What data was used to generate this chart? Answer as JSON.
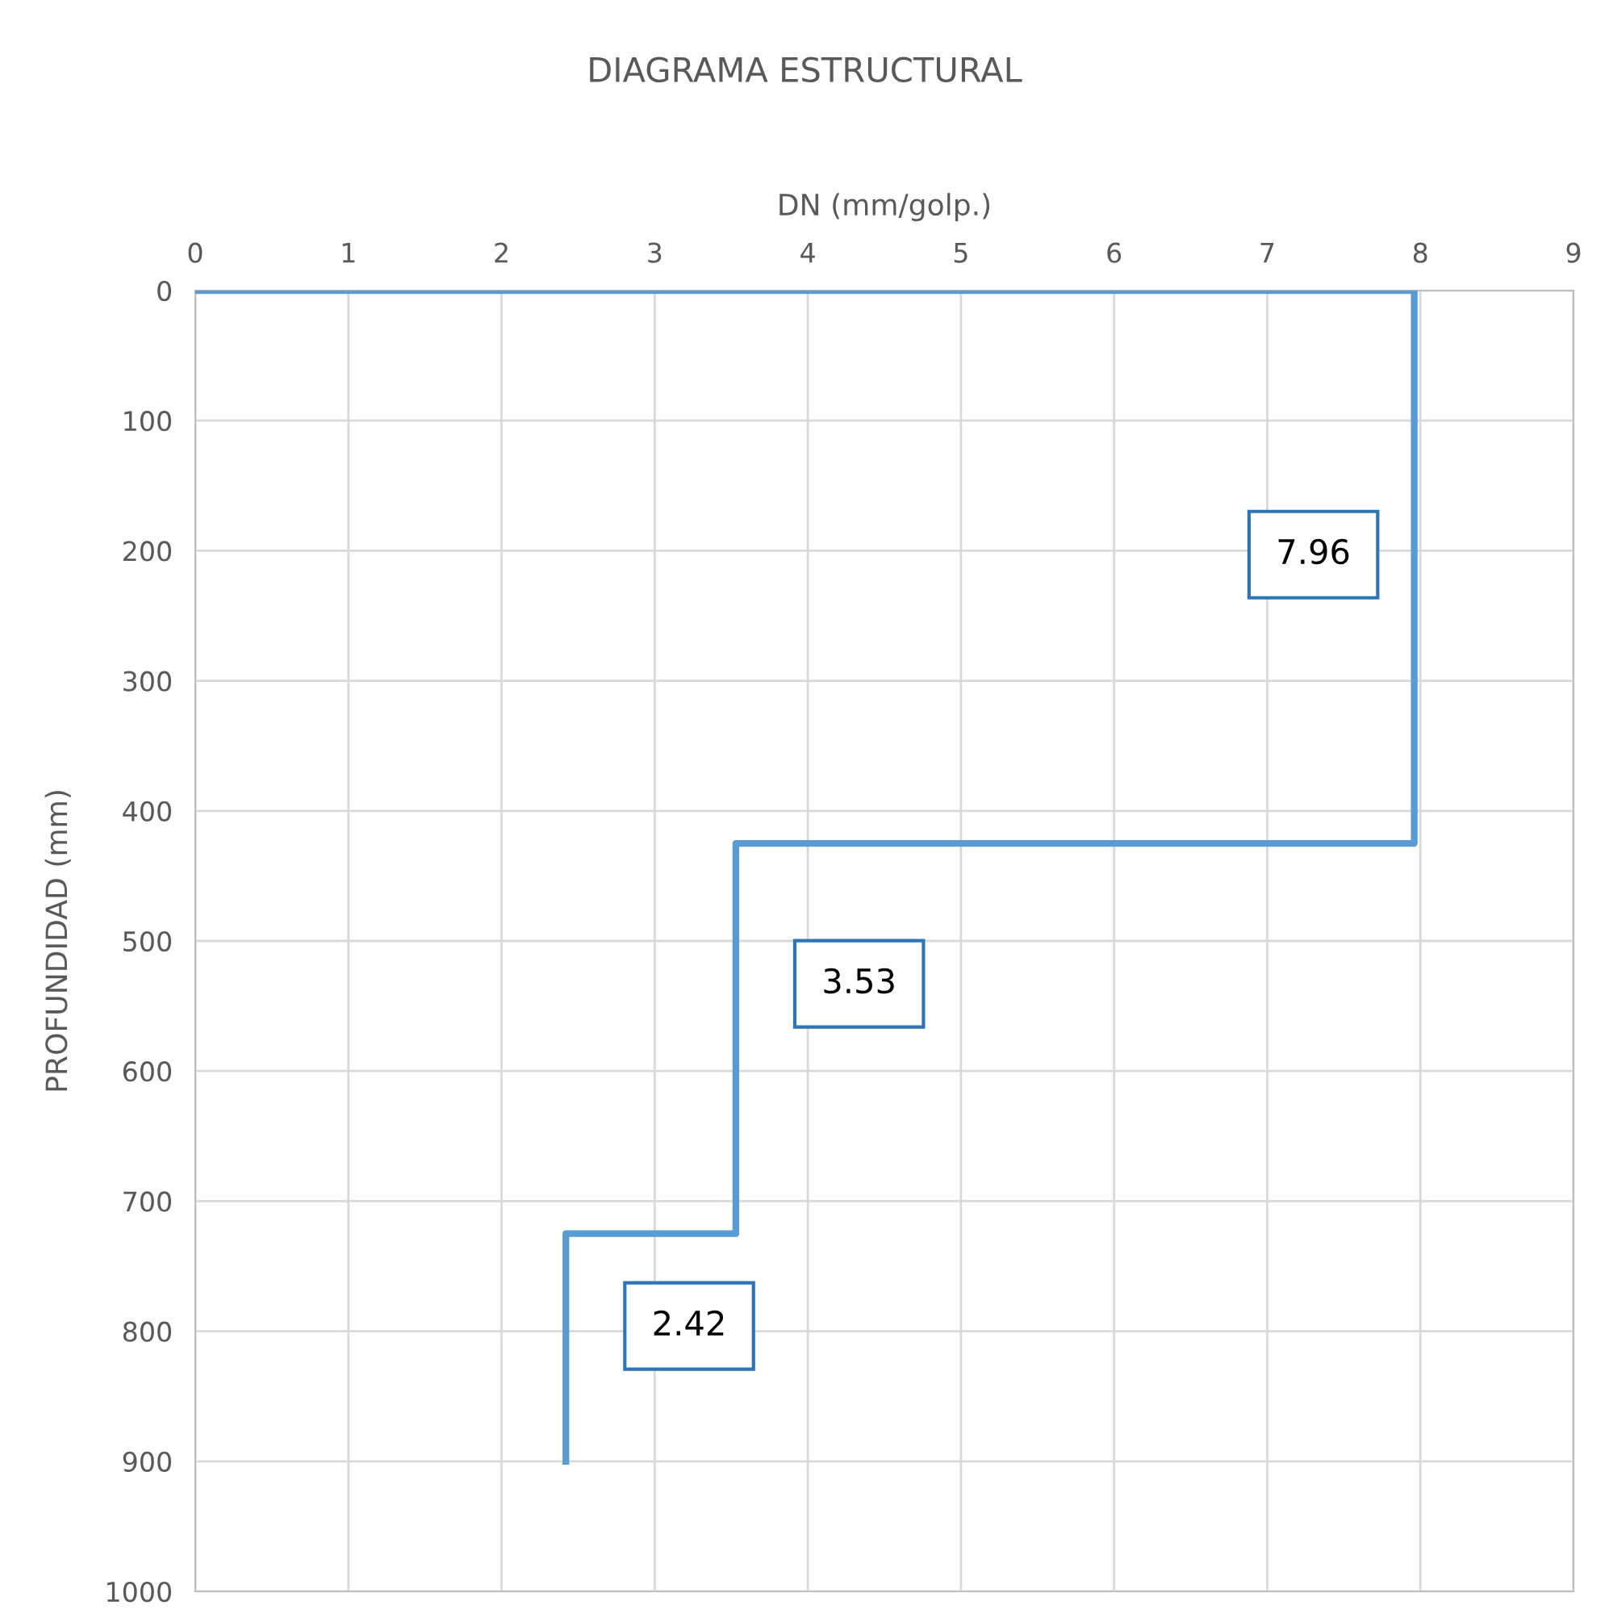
{
  "chart_data": {
    "type": "line",
    "title": "DIAGRAMA ESTRUCTURAL",
    "xlabel": "DN (mm/golp.)",
    "ylabel": "PROFUNDIDAD (mm)",
    "series": [
      {
        "color": "#5b9bd5",
        "x": [
          0,
          7.96,
          7.96,
          3.53,
          3.53,
          2.42,
          2.42
        ],
        "values": [
          0,
          0,
          425,
          425,
          725,
          725,
          900
        ]
      }
    ],
    "xlim": [
      0,
      9
    ],
    "xticks": [
      0,
      1,
      2,
      3,
      4,
      5,
      6,
      7,
      8,
      9
    ],
    "ylim": [
      1000,
      0
    ],
    "yticks": [
      0,
      100,
      200,
      300,
      400,
      500,
      600,
      700,
      800,
      900,
      1000
    ],
    "grid": true,
    "marker": "none",
    "line_style": "solid",
    "annotations": [
      {
        "text": "7.96",
        "x": 7.96,
        "y": 203
      },
      {
        "text": "3.53",
        "x": 3.53,
        "y": 533
      },
      {
        "text": "2.42",
        "x": 2.42,
        "y": 796
      }
    ]
  }
}
